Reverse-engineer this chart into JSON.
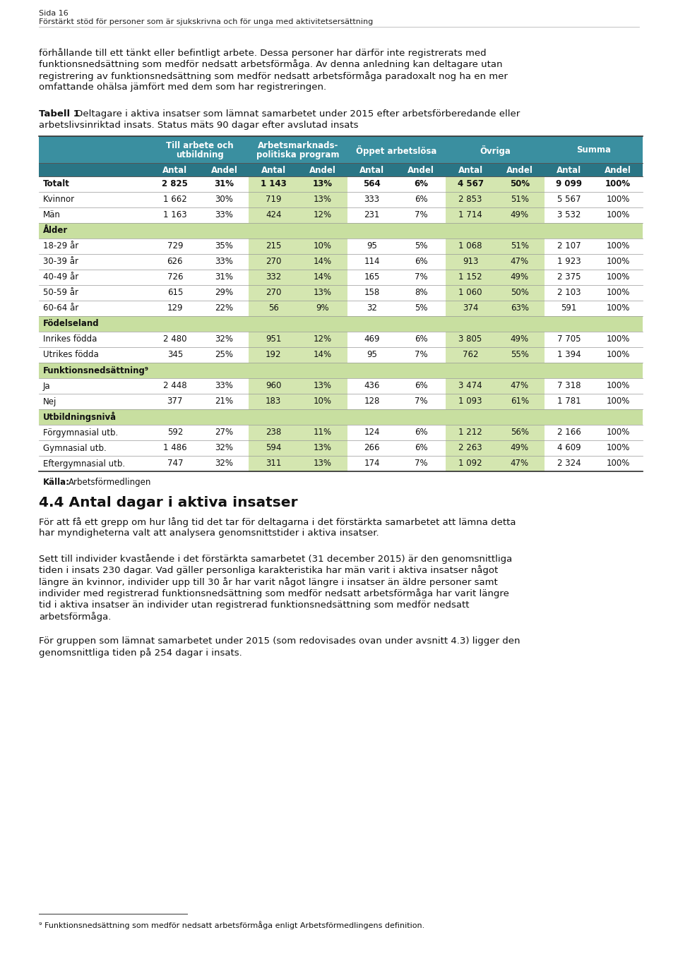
{
  "page_header_line1": "Sida 16",
  "page_header_line2": "Förstärkt stöd för personer som är sjukskrivna och för unga med aktivitetsersättning",
  "intro_text": "förhållande till ett tänkt eller befintligt arbete. Dessa personer har därför inte registrerats med\nfunktionsnedsättning som medför nedsatt arbetsförmåga. Av denna anledning kan deltagare utan\nregistrering av funktionsnedsättning som medför nedsatt arbetsförmåga paradoxalt nog ha en mer\nomfattande ohälsa jämfört med dem som har registreringen.",
  "table_caption_bold": "Tabell 1",
  "table_caption_normal": " Deltagare i aktiva insatser som lämnat samarbetet under 2015 efter arbetsförberedande eller\narbetslivsinriktad insats. Status mäts 90 dagar efter avslutad insats",
  "header_bg_color": "#3a8fa0",
  "header_text_color": "#ffffff",
  "subheader_bg_color": "#2a7585",
  "col_headers": [
    "Till arbete och\nutbildning",
    "Arbetsmarknads-\npolitiska program",
    "Öppet arbetslösa",
    "Övriga",
    "Summa"
  ],
  "subcolumns": [
    "Antal",
    "Andel"
  ],
  "green_bg": "#d4e6b0",
  "white_bg": "#ffffff",
  "section_row_bg": "#c8dfa0",
  "rows": [
    {
      "label": "Totalt",
      "bold": true,
      "section": false,
      "data": [
        "2 825",
        "31%",
        "1 143",
        "13%",
        "564",
        "6%",
        "4 567",
        "50%",
        "9 099",
        "100%"
      ]
    },
    {
      "label": "Kvinnor",
      "bold": false,
      "section": false,
      "data": [
        "1 662",
        "30%",
        "719",
        "13%",
        "333",
        "6%",
        "2 853",
        "51%",
        "5 567",
        "100%"
      ]
    },
    {
      "label": "Män",
      "bold": false,
      "section": false,
      "data": [
        "1 163",
        "33%",
        "424",
        "12%",
        "231",
        "7%",
        "1 714",
        "49%",
        "3 532",
        "100%"
      ]
    },
    {
      "label": "Ålder",
      "bold": true,
      "section": true,
      "data": [
        "",
        "",
        "",
        "",
        "",
        "",
        "",
        "",
        "",
        ""
      ]
    },
    {
      "label": "18-29 år",
      "bold": false,
      "section": false,
      "data": [
        "729",
        "35%",
        "215",
        "10%",
        "95",
        "5%",
        "1 068",
        "51%",
        "2 107",
        "100%"
      ]
    },
    {
      "label": "30-39 år",
      "bold": false,
      "section": false,
      "data": [
        "626",
        "33%",
        "270",
        "14%",
        "114",
        "6%",
        "913",
        "47%",
        "1 923",
        "100%"
      ]
    },
    {
      "label": "40-49 år",
      "bold": false,
      "section": false,
      "data": [
        "726",
        "31%",
        "332",
        "14%",
        "165",
        "7%",
        "1 152",
        "49%",
        "2 375",
        "100%"
      ]
    },
    {
      "label": "50-59 år",
      "bold": false,
      "section": false,
      "data": [
        "615",
        "29%",
        "270",
        "13%",
        "158",
        "8%",
        "1 060",
        "50%",
        "2 103",
        "100%"
      ]
    },
    {
      "label": "60-64 år",
      "bold": false,
      "section": false,
      "data": [
        "129",
        "22%",
        "56",
        "9%",
        "32",
        "5%",
        "374",
        "63%",
        "591",
        "100%"
      ]
    },
    {
      "label": "Födelseland",
      "bold": true,
      "section": true,
      "data": [
        "",
        "",
        "",
        "",
        "",
        "",
        "",
        "",
        "",
        ""
      ]
    },
    {
      "label": "Inrikes födda",
      "bold": false,
      "section": false,
      "data": [
        "2 480",
        "32%",
        "951",
        "12%",
        "469",
        "6%",
        "3 805",
        "49%",
        "7 705",
        "100%"
      ]
    },
    {
      "label": "Utrikes födda",
      "bold": false,
      "section": false,
      "data": [
        "345",
        "25%",
        "192",
        "14%",
        "95",
        "7%",
        "762",
        "55%",
        "1 394",
        "100%"
      ]
    },
    {
      "label": "Funktionsnedsättning⁹",
      "bold": true,
      "section": true,
      "data": [
        "",
        "",
        "",
        "",
        "",
        "",
        "",
        "",
        "",
        ""
      ]
    },
    {
      "label": "Ja",
      "bold": false,
      "section": false,
      "data": [
        "2 448",
        "33%",
        "960",
        "13%",
        "436",
        "6%",
        "3 474",
        "47%",
        "7 318",
        "100%"
      ]
    },
    {
      "label": "Nej",
      "bold": false,
      "section": false,
      "data": [
        "377",
        "21%",
        "183",
        "10%",
        "128",
        "7%",
        "1 093",
        "61%",
        "1 781",
        "100%"
      ]
    },
    {
      "label": "Utbildningsnivå",
      "bold": true,
      "section": true,
      "data": [
        "",
        "",
        "",
        "",
        "",
        "",
        "",
        "",
        "",
        ""
      ]
    },
    {
      "label": "Förgymnasial utb.",
      "bold": false,
      "section": false,
      "data": [
        "592",
        "27%",
        "238",
        "11%",
        "124",
        "6%",
        "1 212",
        "56%",
        "2 166",
        "100%"
      ]
    },
    {
      "label": "Gymnasial utb.",
      "bold": false,
      "section": false,
      "data": [
        "1 486",
        "32%",
        "594",
        "13%",
        "266",
        "6%",
        "2 263",
        "49%",
        "4 609",
        "100%"
      ]
    },
    {
      "label": "Eftergymnasial utb.",
      "bold": false,
      "section": false,
      "data": [
        "747",
        "32%",
        "311",
        "13%",
        "174",
        "7%",
        "1 092",
        "47%",
        "2 324",
        "100%"
      ]
    }
  ],
  "source_bold": "Källa:",
  "source_normal": " Arbetsförmedlingen",
  "section_heading": "4.4 Antal dagar i aktiva insatser",
  "body_text1": "För att få ett grepp om hur lång tid det tar för deltagarna i det förstärkta samarbetet att lämna detta\nhar myndigheterna valt att analysera genomsnittstider i aktiva insatser.",
  "body_text2": "Sett till individer kvastående i det förstärkta samarbetet (31 december 2015) är den genomsnittliga\ntiden i insats 230 dagar. Vad gäller personliga karakteristika har män varit i aktiva insatser något\nlängre än kvinnor, individer upp till 30 år har varit något längre i insatser än äldre personer samt\nindivider med registrerad funktionsnedsättning som medför nedsatt arbetsförmåga har varit längre\ntid i aktiva insatser än individer utan registrerad funktionsnedsättning som medför nedsatt\narbetsförmåga.",
  "body_text3": "För gruppen som lämnat samarbetet under 2015 (som redovisades ovan under avsnitt 4.3) ligger den\ngenomsnittliga tiden på 254 dagar i insats.",
  "footnote": "⁹ Funktionsnedsättning som medför nedsatt arbetsförmåga enligt Arbetsförmedlingens definition."
}
